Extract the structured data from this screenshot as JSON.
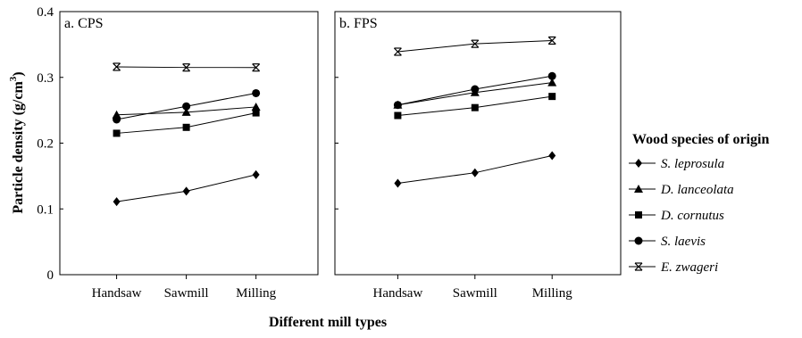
{
  "figure": {
    "ylabel_main": "Particle density (g/cm",
    "ylabel_sup": "3",
    "ylabel_close": ")",
    "xlabel": "Different mill types",
    "legend_title": "Wood species of origin"
  },
  "chart_data": [
    {
      "type": "line",
      "panel_label": "a. CPS",
      "categories": [
        "Handsaw",
        "Sawmill",
        "Milling"
      ],
      "ylim": [
        0,
        0.4
      ],
      "yticks": [
        "0",
        "0.1",
        "0.2",
        "0.3",
        "0.4"
      ],
      "series": [
        {
          "name": "S. leprosula",
          "marker": "diamond",
          "values": [
            0.111,
            0.127,
            0.152
          ]
        },
        {
          "name": "D. lanceolata",
          "marker": "triangle",
          "values": [
            0.243,
            0.247,
            0.255
          ]
        },
        {
          "name": "D. cornutus",
          "marker": "square",
          "values": [
            0.215,
            0.224,
            0.246
          ]
        },
        {
          "name": "S. laevis",
          "marker": "circle",
          "values": [
            0.236,
            0.256,
            0.276
          ]
        },
        {
          "name": "E. zwageri",
          "marker": "star",
          "values": [
            0.316,
            0.315,
            0.315
          ]
        }
      ]
    },
    {
      "type": "line",
      "panel_label": "b. FPS",
      "categories": [
        "Handsaw",
        "Sawmill",
        "Milling"
      ],
      "ylim": [
        0,
        0.4
      ],
      "series": [
        {
          "name": "S. leprosula",
          "marker": "diamond",
          "values": [
            0.139,
            0.155,
            0.181
          ]
        },
        {
          "name": "D. lanceolata",
          "marker": "triangle",
          "values": [
            0.258,
            0.277,
            0.292
          ]
        },
        {
          "name": "D. cornutus",
          "marker": "square",
          "values": [
            0.242,
            0.254,
            0.271
          ]
        },
        {
          "name": "S. laevis",
          "marker": "circle",
          "values": [
            0.258,
            0.282,
            0.302
          ]
        },
        {
          "name": "E. zwageri",
          "marker": "star",
          "values": [
            0.339,
            0.351,
            0.356
          ]
        }
      ]
    }
  ]
}
